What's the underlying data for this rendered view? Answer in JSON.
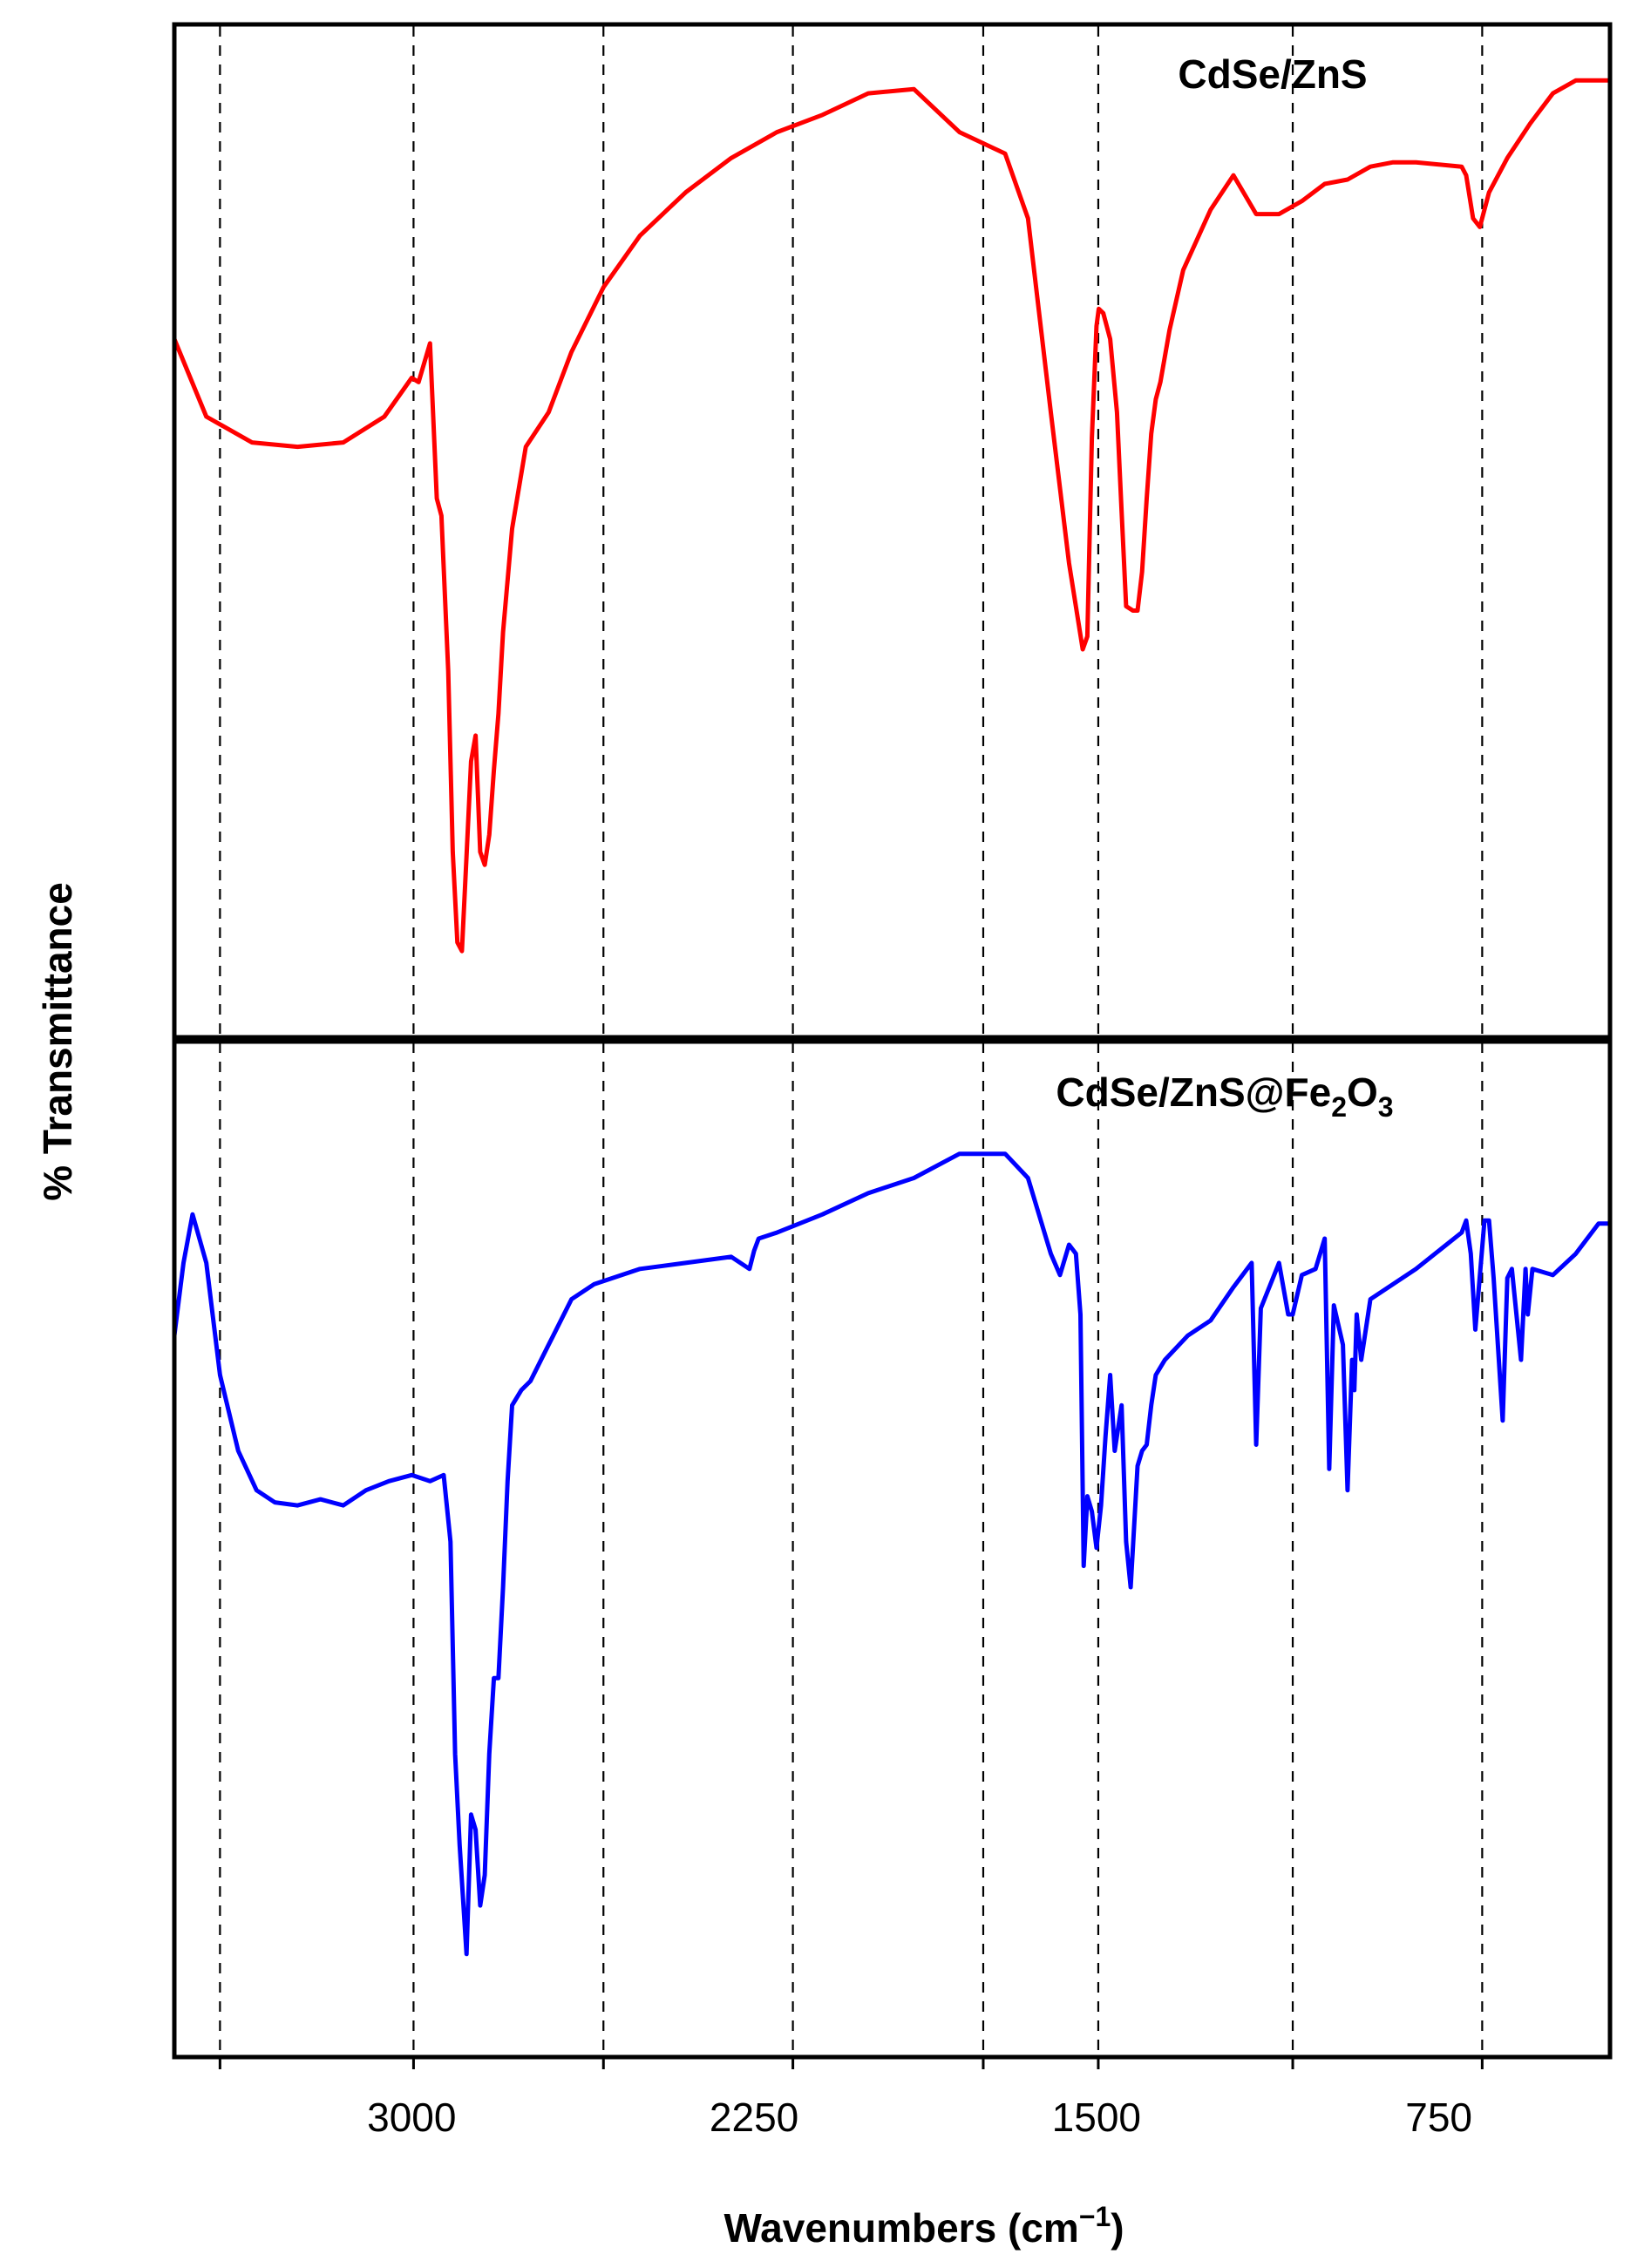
{
  "chart_data": [
    {
      "type": "line",
      "panel": "top",
      "title": "CdSe/ZnS",
      "color": "#ff0000",
      "x_range": [
        3520,
        375
      ],
      "reference_lines_x": [
        3420,
        2996,
        2580,
        2165,
        1748,
        1496,
        1070,
        655
      ],
      "series": [
        {
          "name": "CdSe/ZnS",
          "x": [
            3520,
            3450,
            3350,
            3250,
            3150,
            3060,
            3000,
            2985,
            2960,
            2945,
            2935,
            2920,
            2910,
            2900,
            2890,
            2880,
            2870,
            2860,
            2850,
            2840,
            2830,
            2820,
            2810,
            2800,
            2780,
            2750,
            2700,
            2650,
            2580,
            2500,
            2400,
            2300,
            2200,
            2100,
            2000,
            1900,
            1800,
            1700,
            1650,
            1600,
            1560,
            1530,
            1520,
            1510,
            1500,
            1495,
            1485,
            1470,
            1455,
            1445,
            1435,
            1420,
            1410,
            1400,
            1390,
            1380,
            1370,
            1360,
            1340,
            1310,
            1250,
            1200,
            1150,
            1100,
            1050,
            1000,
            950,
            900,
            850,
            800,
            700,
            690,
            675,
            660,
            640,
            600,
            550,
            500,
            450,
            400,
            375
          ],
          "y": [
            72,
            54,
            48,
            47,
            48,
            54,
            63,
            62,
            71,
            35,
            31,
            -5,
            -47,
            -68,
            -70,
            -48,
            -26,
            -20,
            -47,
            -50,
            -43,
            -28,
            -15,
            4,
            28,
            47,
            55,
            69,
            84,
            96,
            106,
            114,
            120,
            124,
            129,
            130,
            120,
            115,
            100,
            55,
            20,
            0,
            3,
            49,
            75,
            79,
            78,
            72,
            55,
            32,
            10,
            9,
            9,
            18,
            35,
            50,
            58,
            62,
            74,
            88,
            102,
            110,
            101,
            101,
            104,
            108,
            109,
            112,
            113,
            113,
            112,
            110,
            100,
            98,
            106,
            114,
            122,
            129,
            132,
            132,
            132
          ]
        }
      ]
    },
    {
      "type": "line",
      "panel": "bottom",
      "title": "CdSe/ZnS@Fe2O3",
      "title_parts": {
        "a": "CdSe/ZnS@Fe",
        "sub1": "2",
        "b": "O",
        "sub2": "3"
      },
      "color": "#0000ff",
      "xlabel": "Wavenumbers (cm−1)",
      "xlabel_parts": {
        "main": "Wavenumbers (cm",
        "sup": "−1",
        "close": ")"
      },
      "ylabel": "% Transmittance",
      "x_range": [
        3520,
        375
      ],
      "x_ticks": [
        {
          "value": 3000,
          "label": "3000"
        },
        {
          "value": 2250,
          "label": "2250"
        },
        {
          "value": 1500,
          "label": "1500"
        },
        {
          "value": 750,
          "label": "750"
        }
      ],
      "reference_lines_x": [
        3420,
        2996,
        2580,
        2165,
        1748,
        1496,
        1070,
        655
      ],
      "series": [
        {
          "name": "CdSe/ZnS@Fe2O3",
          "x": [
            3520,
            3500,
            3480,
            3450,
            3420,
            3380,
            3340,
            3300,
            3250,
            3200,
            3150,
            3100,
            3050,
            3000,
            2960,
            2930,
            2915,
            2905,
            2895,
            2880,
            2870,
            2860,
            2850,
            2840,
            2830,
            2820,
            2810,
            2800,
            2790,
            2780,
            2760,
            2740,
            2700,
            2650,
            2600,
            2500,
            2400,
            2300,
            2260,
            2250,
            2240,
            2200,
            2100,
            2000,
            1900,
            1800,
            1700,
            1650,
            1600,
            1580,
            1560,
            1545,
            1535,
            1528,
            1520,
            1510,
            1500,
            1490,
            1480,
            1470,
            1460,
            1445,
            1435,
            1425,
            1410,
            1400,
            1390,
            1380,
            1370,
            1350,
            1300,
            1250,
            1200,
            1160,
            1150,
            1140,
            1100,
            1080,
            1070,
            1050,
            1020,
            1000,
            990,
            980,
            960,
            950,
            940,
            935,
            930,
            920,
            900,
            800,
            700,
            690,
            680,
            670,
            650,
            640,
            630,
            610,
            600,
            590,
            570,
            560,
            555,
            545,
            500,
            450,
            400,
            375
          ],
          "y": [
            -52,
            -28,
            -12,
            -28,
            -65,
            -90,
            -103,
            -107,
            -108,
            -106,
            -108,
            -103,
            -100,
            -98,
            -100,
            -98,
            -120,
            -190,
            -220,
            -256,
            -210,
            -215,
            -240,
            -230,
            -190,
            -165,
            -165,
            -135,
            -100,
            -75,
            -70,
            -67,
            -55,
            -40,
            -35,
            -30,
            -28,
            -26,
            -30,
            -24,
            -20,
            -18,
            -12,
            -5,
            0,
            8,
            8,
            0,
            -25,
            -32,
            -22,
            -25,
            -45,
            -128,
            -105,
            -110,
            -122,
            -108,
            -85,
            -65,
            -90,
            -75,
            -120,
            -135,
            -95,
            -90,
            -88,
            -75,
            -65,
            -60,
            -52,
            -47,
            -36,
            -28,
            -88,
            -43,
            -28,
            -45,
            -45,
            -32,
            -30,
            -20,
            -96,
            -42,
            -55,
            -103,
            -60,
            -70,
            -45,
            -60,
            -40,
            -30,
            -18,
            -14,
            -25,
            -50,
            -14,
            -14,
            -33,
            -80,
            -33,
            -30,
            -60,
            -30,
            -45,
            -30,
            -32,
            -25,
            -15,
            -15
          ]
        }
      ]
    }
  ]
}
